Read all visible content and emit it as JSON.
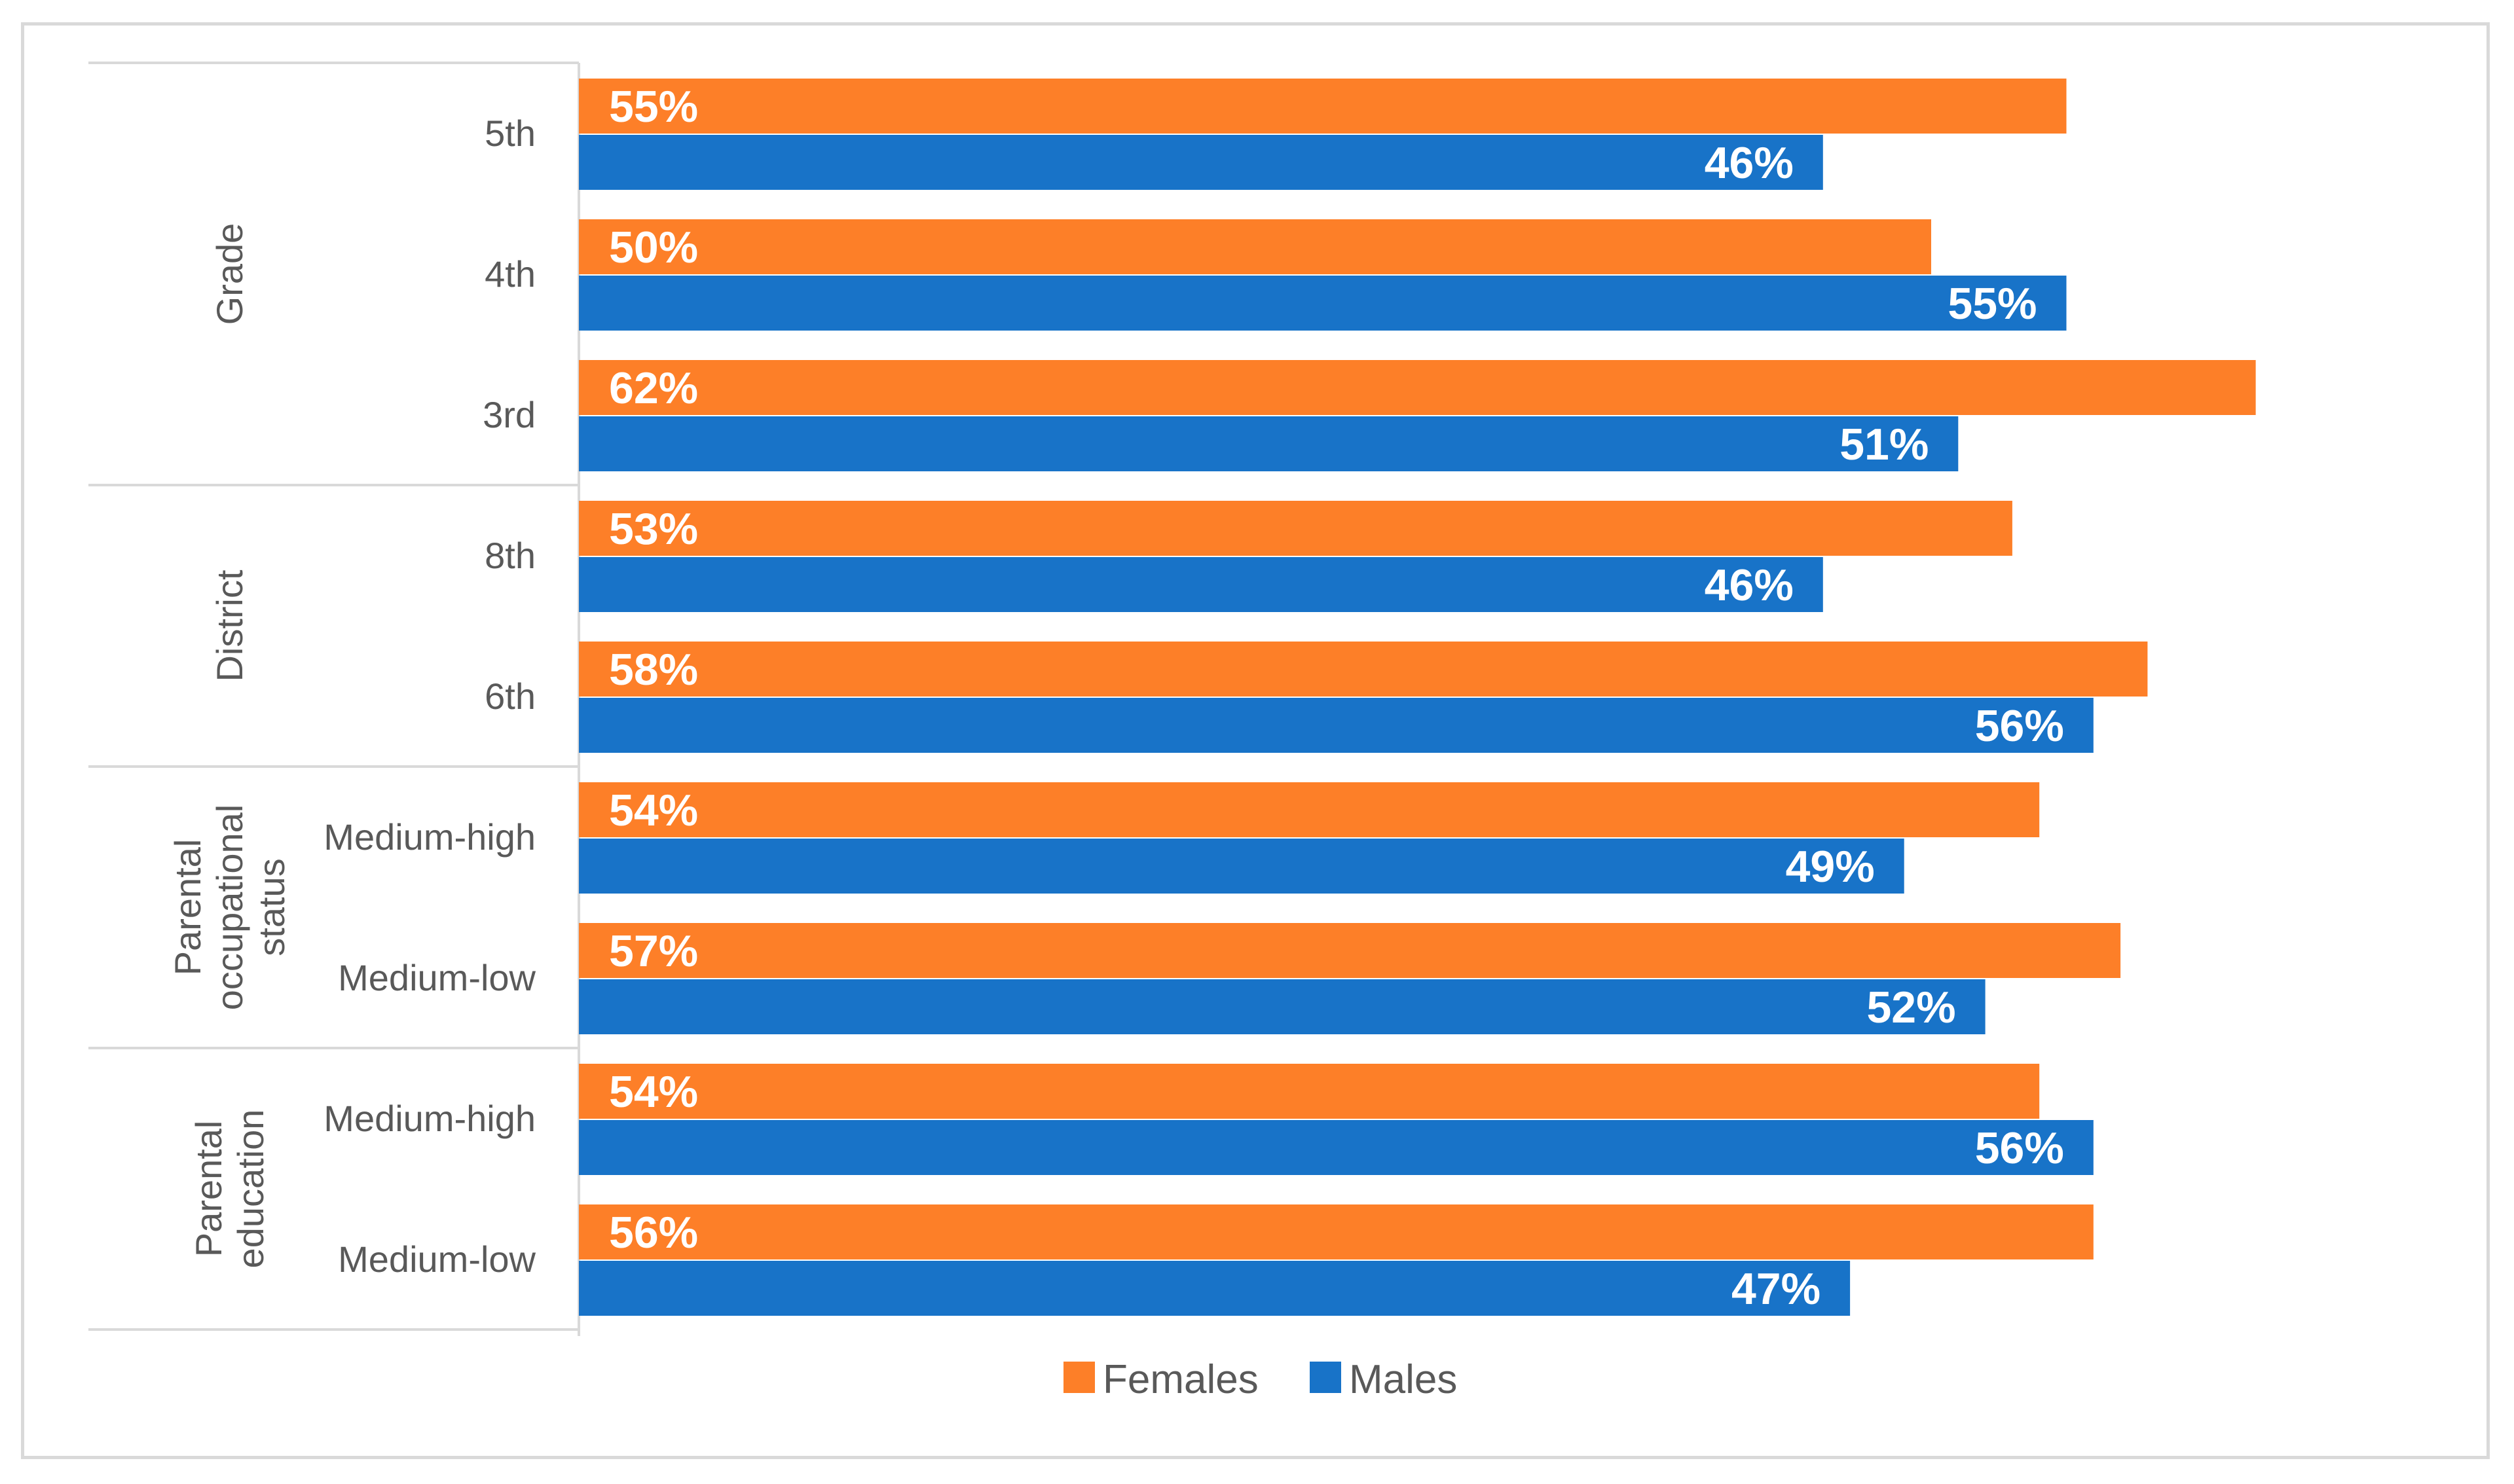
{
  "chart_data": {
    "type": "bar",
    "orientation": "horizontal",
    "title": "",
    "xlabel": "",
    "ylabel": "",
    "xlim": [
      0,
      65
    ],
    "grid": false,
    "legend_position": "bottom",
    "colors": {
      "Females": "#fd7f28",
      "Males": "#1873c8"
    },
    "groups": [
      {
        "name": "Grade",
        "lines": [
          "Grade"
        ],
        "categories": [
          "5th",
          "4th",
          "3rd"
        ]
      },
      {
        "name": "District",
        "lines": [
          "District"
        ],
        "categories": [
          "8th",
          "6th"
        ]
      },
      {
        "name": "Parental occupational status",
        "lines": [
          "Parental",
          "occupational",
          "status"
        ],
        "categories": [
          "Medium-high",
          "Medium-low"
        ]
      },
      {
        "name": "Parental education",
        "lines": [
          "Parental",
          "education"
        ],
        "categories": [
          "Medium-high",
          "Medium-low"
        ]
      }
    ],
    "categories": [
      "5th",
      "4th",
      "3rd",
      "8th",
      "6th",
      "Medium-high",
      "Medium-low",
      "Medium-high",
      "Medium-low"
    ],
    "series": [
      {
        "name": "Females",
        "values": [
          55,
          50,
          62,
          53,
          58,
          54,
          57,
          54,
          56
        ],
        "labels": [
          "55%",
          "50%",
          "62%",
          "53%",
          "58%",
          "54%",
          "57%",
          "54%",
          "56%"
        ]
      },
      {
        "name": "Males",
        "values": [
          46,
          55,
          51,
          46,
          56,
          49,
          52,
          56,
          47
        ],
        "labels": [
          "46%",
          "55%",
          "51%",
          "46%",
          "56%",
          "49%",
          "52%",
          "56%",
          "47%"
        ]
      }
    ]
  }
}
